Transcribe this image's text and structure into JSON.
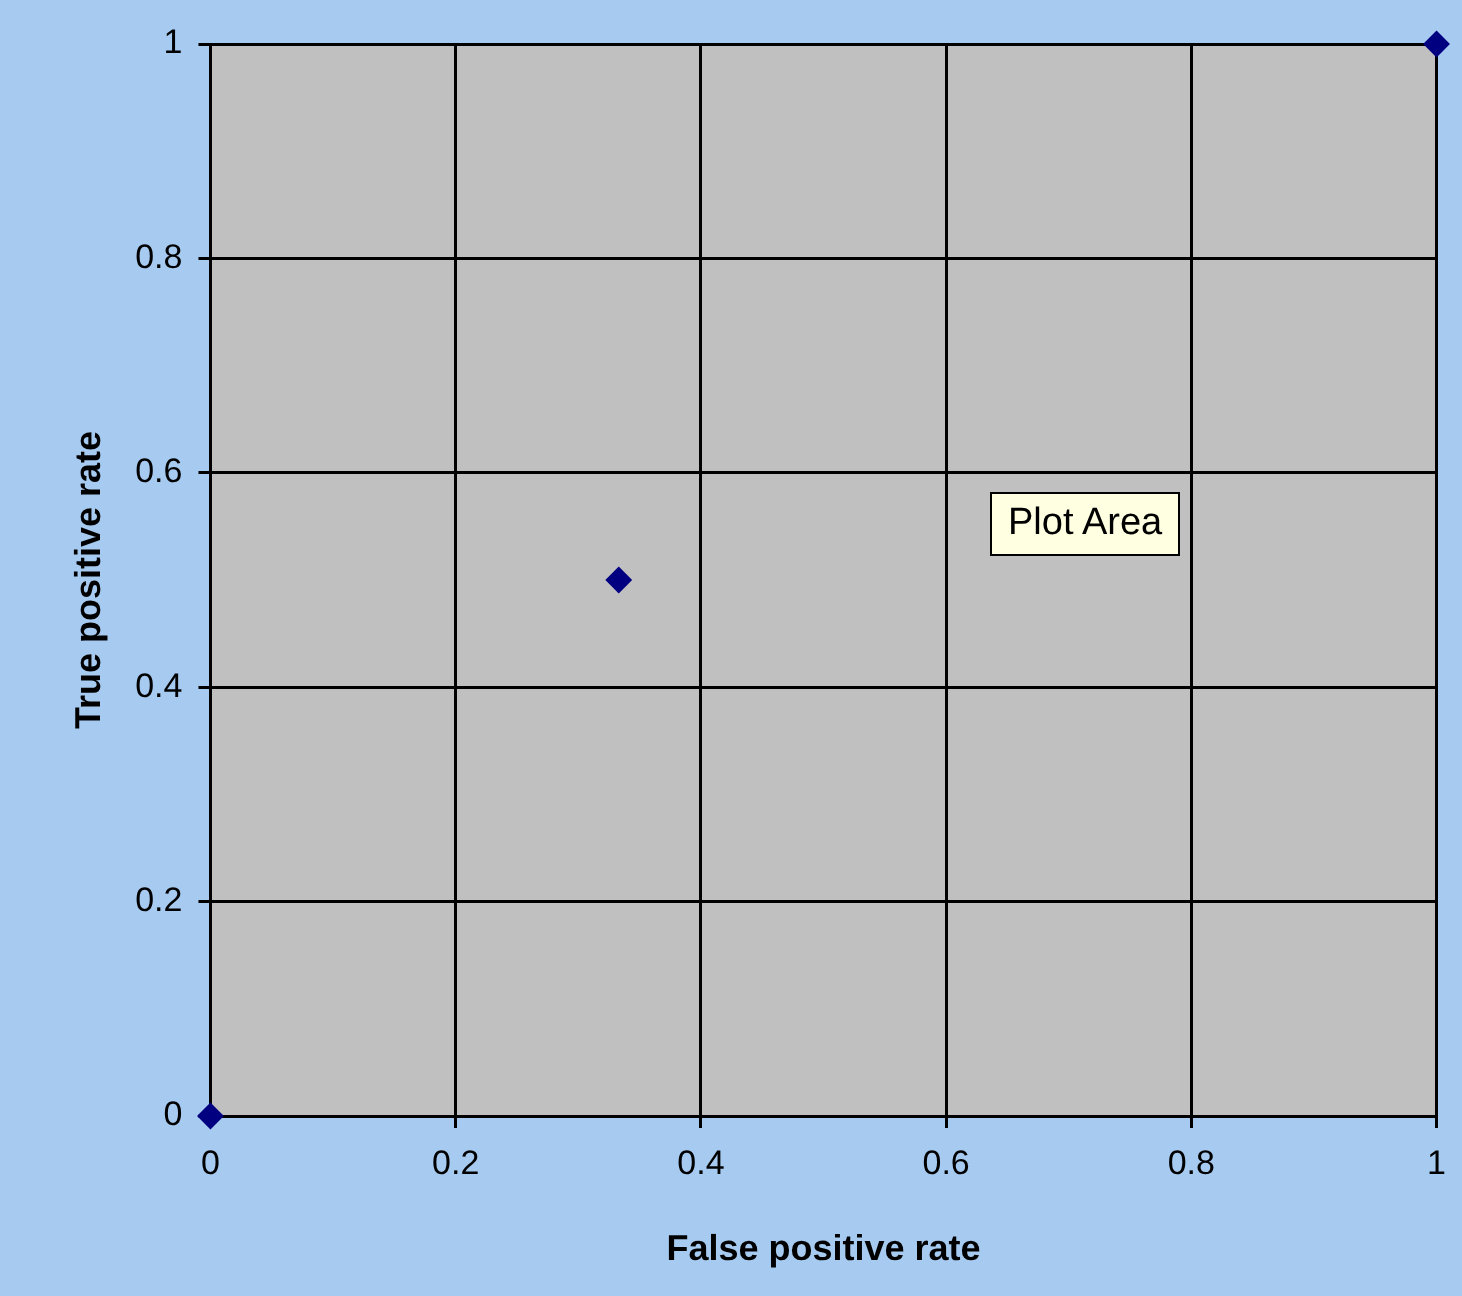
{
  "chart_data": {
    "type": "scatter",
    "xlabel": "False positive rate",
    "ylabel": "True positive rate",
    "x": [
      0,
      0.333,
      1
    ],
    "series": [
      {
        "color": "#000080",
        "values": [
          0,
          0.5,
          1
        ]
      }
    ],
    "xlim": [
      0,
      1
    ],
    "ylim": [
      0,
      1
    ],
    "xticks": [
      0,
      0.2,
      0.4,
      0.6,
      0.8,
      1
    ],
    "yticks": [
      0,
      0.2,
      0.4,
      0.6,
      0.8,
      1
    ],
    "grid": true,
    "legend": false,
    "marker": "diamond",
    "annotations": [
      "Plot Area"
    ]
  }
}
